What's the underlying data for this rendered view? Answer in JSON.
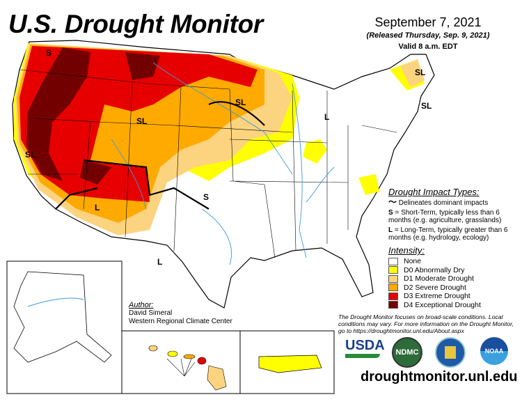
{
  "header": {
    "title": "U.S. Drought Monitor",
    "date": "September 7, 2021",
    "released": "(Released Thursday, Sep. 9, 2021)",
    "valid": "Valid 8 a.m. EDT"
  },
  "map_labels": [
    "S",
    "SL",
    "SL",
    "SL",
    "L",
    "S",
    "L",
    "L",
    "SL",
    "SL",
    "S",
    "S"
  ],
  "impact_types": {
    "heading": "Drought Impact Types:",
    "delineates": "Delineates dominant impacts",
    "short_key": "S",
    "short_text": " = Short-Term, typically less than 6 months (e.g. agriculture, grasslands)",
    "long_key": "L",
    "long_text": " = Long-Term, typically greater than 6 months (e.g. hydrology, ecology)"
  },
  "intensity": {
    "heading": "Intensity:",
    "items": [
      {
        "label": "None",
        "color": "#ffffff"
      },
      {
        "label": "D0 Abnormally Dry",
        "color": "#ffff00"
      },
      {
        "label": "D1 Moderate Drought",
        "color": "#fcd37f"
      },
      {
        "label": "D2 Severe Drought",
        "color": "#ffaa00"
      },
      {
        "label": "D3 Extreme Drought",
        "color": "#e60000"
      },
      {
        "label": "D4 Exceptional Drought",
        "color": "#730000"
      }
    ]
  },
  "author": {
    "heading": "Author:",
    "name": "David Simeral",
    "org": "Western Regional Climate Center"
  },
  "note": "The Drought Monitor focuses on broad-scale conditions. Local conditions may vary. For more information on the Drought Monitor, go to https://droughtmonitor.unl.edu/About.aspx",
  "logos": {
    "usda": "USDA",
    "ndmc": "NDMC",
    "noaa": "NOAA"
  },
  "website": "droughtmonitor.unl.edu"
}
